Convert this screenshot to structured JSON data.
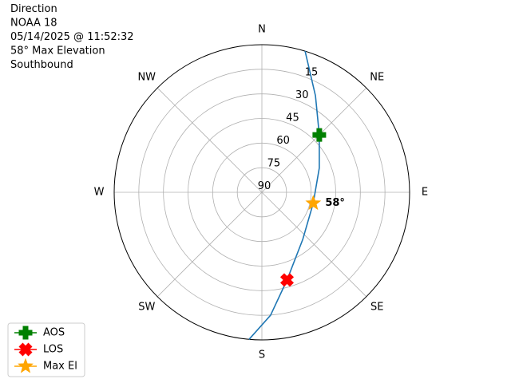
{
  "chart_data": {
    "type": "polar",
    "title_lines": [
      "Direction",
      "NOAA 18",
      "05/14/2025 @ 11:52:32",
      "58° Max Elevation",
      "Southbound"
    ],
    "direction_ticks": [
      {
        "value": 0,
        "label": "N"
      },
      {
        "value": 45,
        "label": "NE"
      },
      {
        "value": 90,
        "label": "E"
      },
      {
        "value": 135,
        "label": "SE"
      },
      {
        "value": 180,
        "label": "S"
      },
      {
        "value": 225,
        "label": "SW"
      },
      {
        "value": 270,
        "label": "W"
      },
      {
        "value": 315,
        "label": "NW"
      }
    ],
    "rlim": [
      90,
      0
    ],
    "rticks": [
      90,
      75,
      60,
      45,
      30,
      15
    ],
    "grid": true,
    "track": {
      "color": "#1f77b4",
      "azimuth": [
        17,
        29,
        45,
        67,
        102,
        139,
        164,
        176,
        185
      ],
      "elevation": [
        0,
        22.7,
        40.5,
        52,
        58,
        52,
        34.4,
        14.8,
        0
      ]
    },
    "markers": [
      {
        "name": "AOS",
        "color": "#008000",
        "marker": "plus",
        "azimuth": 45,
        "elevation": 40.5
      },
      {
        "name": "LOS",
        "color": "#ff0000",
        "marker": "x",
        "azimuth": 164,
        "elevation": 34.4
      },
      {
        "name": "Max El",
        "color": "#ffa500",
        "marker": "star",
        "azimuth": 102,
        "elevation": 58
      }
    ],
    "annotation": {
      "text": "58°",
      "azimuth": 102,
      "elevation": 58
    },
    "legend": "lower left"
  }
}
